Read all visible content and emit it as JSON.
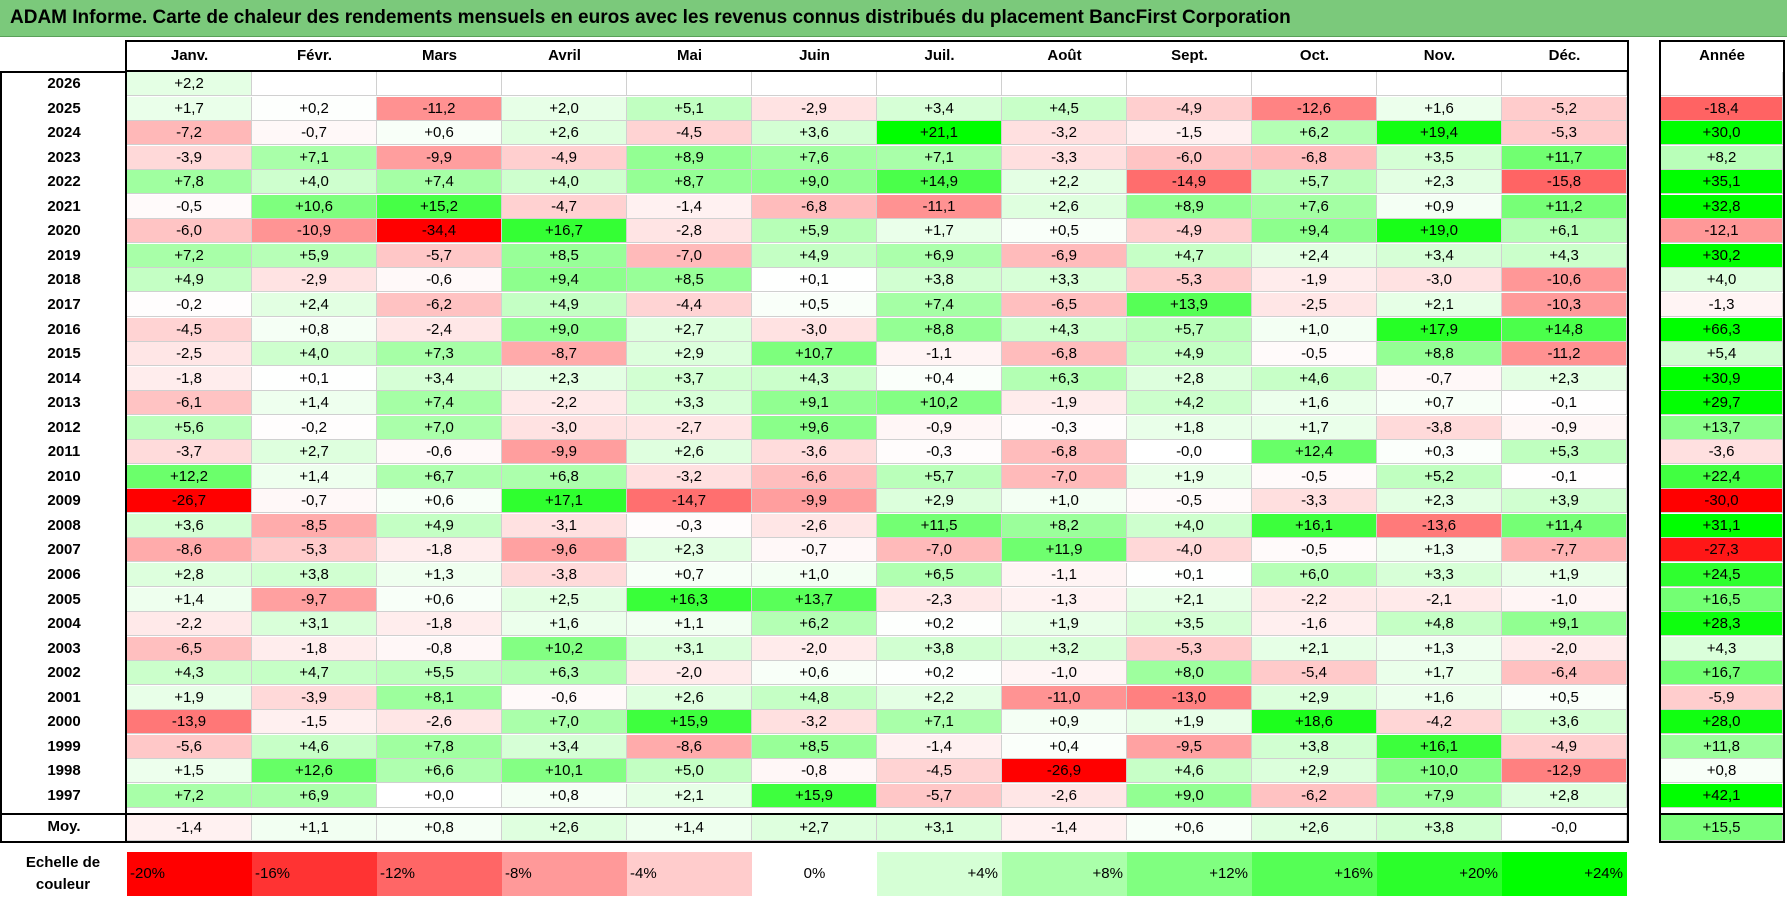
{
  "title": "ADAM Informe. Carte de chaleur des rendements mensuels en euros avec les revenus connus distribués du placement BancFirst Corporation",
  "chart_data": {
    "type": "heatmap",
    "title": "ADAM Informe. Carte de chaleur des rendements mensuels en euros avec les revenus connus distribués du placement BancFirst Corporation",
    "months": [
      "Janv.",
      "Févr.",
      "Mars",
      "Avril",
      "Mai",
      "Juin",
      "Juil.",
      "Août",
      "Sept.",
      "Oct.",
      "Nov.",
      "Déc."
    ],
    "year_header": "Année",
    "rows": [
      {
        "year": "2026",
        "months": [
          "+2,2",
          "",
          "",
          "",
          "",
          "",
          "",
          "",
          "",
          "",
          "",
          ""
        ],
        "annual": ""
      },
      {
        "year": "2025",
        "months": [
          "+1,7",
          "+0,2",
          "-11,2",
          "+2,0",
          "+5,1",
          "-2,9",
          "+3,4",
          "+4,5",
          "-4,9",
          "-12,6",
          "+1,6",
          "-5,2"
        ],
        "annual": "-18,4"
      },
      {
        "year": "2024",
        "months": [
          "-7,2",
          "-0,7",
          "+0,6",
          "+2,6",
          "-4,5",
          "+3,6",
          "+21,1",
          "-3,2",
          "-1,5",
          "+6,2",
          "+19,4",
          "-5,3"
        ],
        "annual": "+30,0"
      },
      {
        "year": "2023",
        "months": [
          "-3,9",
          "+7,1",
          "-9,9",
          "-4,9",
          "+8,9",
          "+7,6",
          "+7,1",
          "-3,3",
          "-6,0",
          "-6,8",
          "+3,5",
          "+11,7"
        ],
        "annual": "+8,2"
      },
      {
        "year": "2022",
        "months": [
          "+7,8",
          "+4,0",
          "+7,4",
          "+4,0",
          "+8,7",
          "+9,0",
          "+14,9",
          "+2,2",
          "-14,9",
          "+5,7",
          "+2,3",
          "-15,8"
        ],
        "annual": "+35,1"
      },
      {
        "year": "2021",
        "months": [
          "-0,5",
          "+10,6",
          "+15,2",
          "-4,7",
          "-1,4",
          "-6,8",
          "-11,1",
          "+2,6",
          "+8,9",
          "+7,6",
          "+0,9",
          "+11,2"
        ],
        "annual": "+32,8"
      },
      {
        "year": "2020",
        "months": [
          "-6,0",
          "-10,9",
          "-34,4",
          "+16,7",
          "-2,8",
          "+5,9",
          "+1,7",
          "+0,5",
          "-4,9",
          "+9,4",
          "+19,0",
          "+6,1"
        ],
        "annual": "-12,1"
      },
      {
        "year": "2019",
        "months": [
          "+7,2",
          "+5,9",
          "-5,7",
          "+8,5",
          "-7,0",
          "+4,9",
          "+6,9",
          "-6,9",
          "+4,7",
          "+2,4",
          "+3,4",
          "+4,3"
        ],
        "annual": "+30,2"
      },
      {
        "year": "2018",
        "months": [
          "+4,9",
          "-2,9",
          "-0,6",
          "+9,4",
          "+8,5",
          "+0,1",
          "+3,8",
          "+3,3",
          "-5,3",
          "-1,9",
          "-3,0",
          "-10,6"
        ],
        "annual": "+4,0"
      },
      {
        "year": "2017",
        "months": [
          "-0,2",
          "+2,4",
          "-6,2",
          "+4,9",
          "-4,4",
          "+0,5",
          "+7,4",
          "-6,5",
          "+13,9",
          "-2,5",
          "+2,1",
          "-10,3"
        ],
        "annual": "-1,3"
      },
      {
        "year": "2016",
        "months": [
          "-4,5",
          "+0,8",
          "-2,4",
          "+9,0",
          "+2,7",
          "-3,0",
          "+8,8",
          "+4,3",
          "+5,7",
          "+1,0",
          "+17,9",
          "+14,8"
        ],
        "annual": "+66,3"
      },
      {
        "year": "2015",
        "months": [
          "-2,5",
          "+4,0",
          "+7,3",
          "-8,7",
          "+2,9",
          "+10,7",
          "-1,1",
          "-6,8",
          "+4,9",
          "-0,5",
          "+8,8",
          "-11,2"
        ],
        "annual": "+5,4"
      },
      {
        "year": "2014",
        "months": [
          "-1,8",
          "+0,1",
          "+3,4",
          "+2,3",
          "+3,7",
          "+4,3",
          "+0,4",
          "+6,3",
          "+2,8",
          "+4,6",
          "-0,7",
          "+2,3"
        ],
        "annual": "+30,9"
      },
      {
        "year": "2013",
        "months": [
          "-6,1",
          "+1,4",
          "+7,4",
          "-2,2",
          "+3,3",
          "+9,1",
          "+10,2",
          "-1,9",
          "+4,2",
          "+1,6",
          "+0,7",
          "-0,1"
        ],
        "annual": "+29,7"
      },
      {
        "year": "2012",
        "months": [
          "+5,6",
          "-0,2",
          "+7,0",
          "-3,0",
          "-2,7",
          "+9,6",
          "-0,9",
          "-0,3",
          "+1,8",
          "+1,7",
          "-3,8",
          "-0,9"
        ],
        "annual": "+13,7"
      },
      {
        "year": "2011",
        "months": [
          "-3,7",
          "+2,7",
          "-0,6",
          "-9,9",
          "+2,6",
          "-3,6",
          "-0,3",
          "-6,8",
          "-0,0",
          "+12,4",
          "+0,3",
          "+5,3"
        ],
        "annual": "-3,6"
      },
      {
        "year": "2010",
        "months": [
          "+12,2",
          "+1,4",
          "+6,7",
          "+6,8",
          "-3,2",
          "-6,6",
          "+5,7",
          "-7,0",
          "+1,9",
          "-0,5",
          "+5,2",
          "-0,1"
        ],
        "annual": "+22,4"
      },
      {
        "year": "2009",
        "months": [
          "-26,7",
          "-0,7",
          "+0,6",
          "+17,1",
          "-14,7",
          "-9,9",
          "+2,9",
          "+1,0",
          "-0,5",
          "-3,3",
          "+2,3",
          "+3,9"
        ],
        "annual": "-30,0"
      },
      {
        "year": "2008",
        "months": [
          "+3,6",
          "-8,5",
          "+4,9",
          "-3,1",
          "-0,3",
          "-2,6",
          "+11,5",
          "+8,2",
          "+4,0",
          "+16,1",
          "-13,6",
          "+11,4"
        ],
        "annual": "+31,1"
      },
      {
        "year": "2007",
        "months": [
          "-8,6",
          "-5,3",
          "-1,8",
          "-9,6",
          "+2,3",
          "-0,7",
          "-7,0",
          "+11,9",
          "-4,0",
          "-0,5",
          "+1,3",
          "-7,7"
        ],
        "annual": "-27,3"
      },
      {
        "year": "2006",
        "months": [
          "+2,8",
          "+3,8",
          "+1,3",
          "-3,8",
          "+0,7",
          "+1,0",
          "+6,5",
          "-1,1",
          "+0,1",
          "+6,0",
          "+3,3",
          "+1,9"
        ],
        "annual": "+24,5"
      },
      {
        "year": "2005",
        "months": [
          "+1,4",
          "-9,7",
          "+0,6",
          "+2,5",
          "+16,3",
          "+13,7",
          "-2,3",
          "-1,3",
          "+2,1",
          "-2,2",
          "-2,1",
          "-1,0"
        ],
        "annual": "+16,5"
      },
      {
        "year": "2004",
        "months": [
          "-2,2",
          "+3,1",
          "-1,8",
          "+1,6",
          "+1,1",
          "+6,2",
          "+0,2",
          "+1,9",
          "+3,5",
          "-1,6",
          "+4,8",
          "+9,1"
        ],
        "annual": "+28,3"
      },
      {
        "year": "2003",
        "months": [
          "-6,5",
          "-1,8",
          "-0,8",
          "+10,2",
          "+3,1",
          "-2,0",
          "+3,8",
          "+3,2",
          "-5,3",
          "+2,1",
          "+1,3",
          "-2,0"
        ],
        "annual": "+4,3"
      },
      {
        "year": "2002",
        "months": [
          "+4,3",
          "+4,7",
          "+5,5",
          "+6,3",
          "-2,0",
          "+0,6",
          "+0,2",
          "-1,0",
          "+8,0",
          "-5,4",
          "+1,7",
          "-6,4"
        ],
        "annual": "+16,7"
      },
      {
        "year": "2001",
        "months": [
          "+1,9",
          "-3,9",
          "+8,1",
          "-0,6",
          "+2,6",
          "+4,8",
          "+2,2",
          "-11,0",
          "-13,0",
          "+2,9",
          "+1,6",
          "+0,5"
        ],
        "annual": "-5,9"
      },
      {
        "year": "2000",
        "months": [
          "-13,9",
          "-1,5",
          "-2,6",
          "+7,0",
          "+15,9",
          "-3,2",
          "+7,1",
          "+0,9",
          "+1,9",
          "+18,6",
          "-4,2",
          "+3,6"
        ],
        "annual": "+28,0"
      },
      {
        "year": "1999",
        "months": [
          "-5,6",
          "+4,6",
          "+7,8",
          "+3,4",
          "-8,6",
          "+8,5",
          "-1,4",
          "+0,4",
          "-9,5",
          "+3,8",
          "+16,1",
          "-4,9"
        ],
        "annual": "+11,8"
      },
      {
        "year": "1998",
        "months": [
          "+1,5",
          "+12,6",
          "+6,6",
          "+10,1",
          "+5,0",
          "-0,8",
          "-4,5",
          "-26,9",
          "+4,6",
          "+2,9",
          "+10,0",
          "-12,9"
        ],
        "annual": "+0,8"
      },
      {
        "year": "1997",
        "months": [
          "+7,2",
          "+6,9",
          "+0,0",
          "+0,8",
          "+2,1",
          "+15,9",
          "-5,7",
          "-2,6",
          "+9,0",
          "-6,2",
          "+7,9",
          "+2,8"
        ],
        "annual": "+42,1"
      }
    ],
    "average": {
      "label": "Moy.",
      "months": [
        "-1,4",
        "+1,1",
        "+0,8",
        "+2,6",
        "+1,4",
        "+2,7",
        "+3,1",
        "-1,4",
        "+0,6",
        "+2,6",
        "+3,8",
        "-0,0"
      ],
      "annual": "+15,5"
    },
    "color_scale": {
      "label": "Echelle de couleur",
      "stops": [
        "-20%",
        "-16%",
        "-12%",
        "-8%",
        "-4%",
        "0%",
        "+4%",
        "+8%",
        "+12%",
        "+16%",
        "+20%",
        "+24%"
      ],
      "stop_values": [
        -20,
        -16,
        -12,
        -8,
        -4,
        0,
        4,
        8,
        12,
        16,
        20,
        24
      ],
      "negative_color": "#ff0000",
      "positive_color": "#00ff00",
      "neutral_color": "#ffffff"
    }
  }
}
